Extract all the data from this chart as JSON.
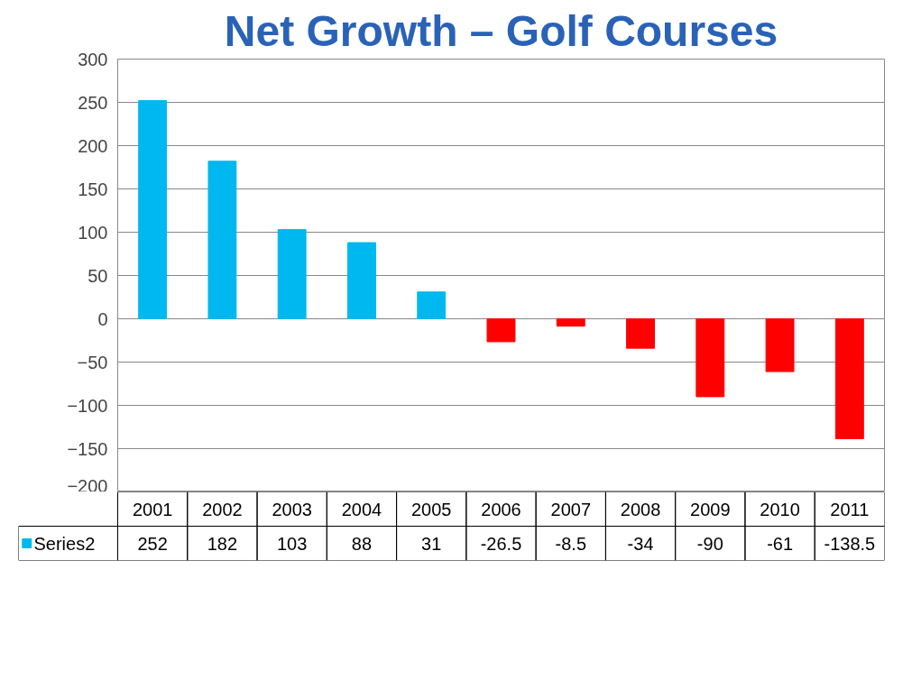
{
  "chart_data": {
    "type": "bar",
    "title": "Net Growth – Golf Courses",
    "categories": [
      "2001",
      "2002",
      "2003",
      "2004",
      "2005",
      "2006",
      "2007",
      "2008",
      "2009",
      "2010",
      "2011"
    ],
    "series": [
      {
        "name": "Series2",
        "color": "#00b8f0",
        "values": [
          252,
          182,
          103,
          88,
          31,
          -26.5,
          -8.5,
          -34,
          -90,
          -61,
          -138.5
        ],
        "colors": [
          "#00b8f0",
          "#00b8f0",
          "#00b8f0",
          "#00b8f0",
          "#00b8f0",
          "#ff0000",
          "#ff0000",
          "#ff0000",
          "#ff0000",
          "#ff0000",
          "#ff0000"
        ]
      }
    ],
    "ylim": [
      -200,
      300
    ],
    "yticks": [
      -200,
      -150,
      -100,
      -50,
      0,
      50,
      100,
      150,
      200,
      250,
      300
    ],
    "grid": "y",
    "data_labels": true,
    "legend": "bottom"
  }
}
